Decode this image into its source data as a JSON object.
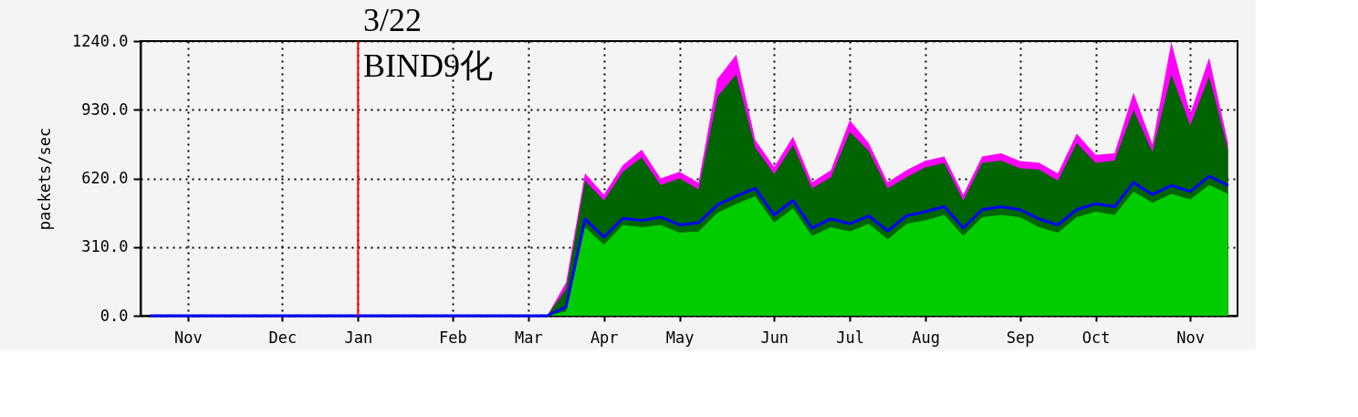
{
  "chart_data": {
    "type": "area",
    "ylabel": "packets/sec",
    "categories": [
      null,
      null,
      "Nov",
      null,
      null,
      null,
      null,
      "Dec",
      null,
      null,
      null,
      "Jan",
      null,
      null,
      null,
      null,
      "Feb",
      null,
      null,
      null,
      "Mar",
      null,
      null,
      null,
      "Apr",
      null,
      null,
      null,
      "May",
      null,
      null,
      null,
      null,
      "Jun",
      null,
      null,
      null,
      "Jul",
      null,
      null,
      null,
      "Aug",
      null,
      null,
      null,
      null,
      "Sep",
      null,
      null,
      null,
      "Oct",
      null,
      null,
      null,
      null,
      "Nov",
      null,
      null
    ],
    "series": [
      {
        "color": "#ff00ff",
        "values": [
          0,
          0,
          0,
          0,
          0,
          0,
          0,
          0,
          0,
          0,
          0,
          0,
          0,
          0,
          0,
          0,
          0,
          0,
          0,
          0,
          0,
          0,
          150,
          643,
          547,
          680,
          750,
          620,
          650,
          600,
          1069,
          1178,
          794,
          671,
          808,
          602,
          657,
          883,
          780,
          602,
          657,
          700,
          719,
          547,
          719,
          733,
          698,
          691,
          643,
          822,
          726,
          733,
          1007,
          774,
          1235,
          911,
          1165,
          780
        ]
      },
      {
        "color": "#006400",
        "values": [
          0,
          0,
          0,
          0,
          0,
          0,
          0,
          0,
          0,
          0,
          0,
          0,
          0,
          0,
          0,
          0,
          0,
          0,
          0,
          0,
          0,
          0,
          120,
          610,
          520,
          650,
          715,
          590,
          620,
          570,
          990,
          1090,
          760,
          640,
          770,
          575,
          625,
          830,
          745,
          575,
          625,
          670,
          690,
          520,
          690,
          700,
          665,
          660,
          610,
          780,
          690,
          700,
          930,
          740,
          1090,
          860,
          1080,
          750
        ]
      },
      {
        "color": "#00cc00",
        "values": [
          0,
          0,
          0,
          0,
          0,
          0,
          0,
          0,
          0,
          0,
          0,
          0,
          0,
          0,
          0,
          0,
          0,
          0,
          0,
          0,
          0,
          0,
          20,
          400,
          320,
          410,
          400,
          410,
          375,
          380,
          465,
          505,
          540,
          420,
          485,
          360,
          400,
          380,
          415,
          345,
          415,
          430,
          455,
          360,
          445,
          455,
          445,
          400,
          375,
          445,
          470,
          455,
          560,
          510,
          550,
          525,
          590,
          550
        ]
      },
      {
        "type": "line",
        "color": "#0000ff",
        "values": [
          0,
          0,
          0,
          0,
          0,
          0,
          0,
          0,
          0,
          0,
          0,
          0,
          0,
          0,
          0,
          0,
          0,
          0,
          0,
          0,
          0,
          0,
          40,
          437,
          355,
          440,
          430,
          445,
          410,
          420,
          500,
          540,
          575,
          455,
          520,
          396,
          437,
          415,
          451,
          383,
          451,
          470,
          492,
          396,
          479,
          492,
          479,
          437,
          410,
          479,
          506,
          492,
          602,
          547,
          588,
          561,
          630,
          588
        ]
      }
    ],
    "ylim": [
      0,
      1240
    ],
    "yticks": [
      {
        "value": 0,
        "label": "0.0"
      },
      {
        "value": 310,
        "label": "310.0"
      },
      {
        "value": 620,
        "label": "620.0"
      },
      {
        "value": 930,
        "label": "930.0"
      },
      {
        "value": 1240,
        "label": "1240.0"
      }
    ],
    "grid": true,
    "ref_lines": [
      {
        "axis": "x",
        "value": "Jan",
        "color": "#ff0000"
      }
    ],
    "annotations": [
      "3/22\nBIND9化"
    ]
  }
}
